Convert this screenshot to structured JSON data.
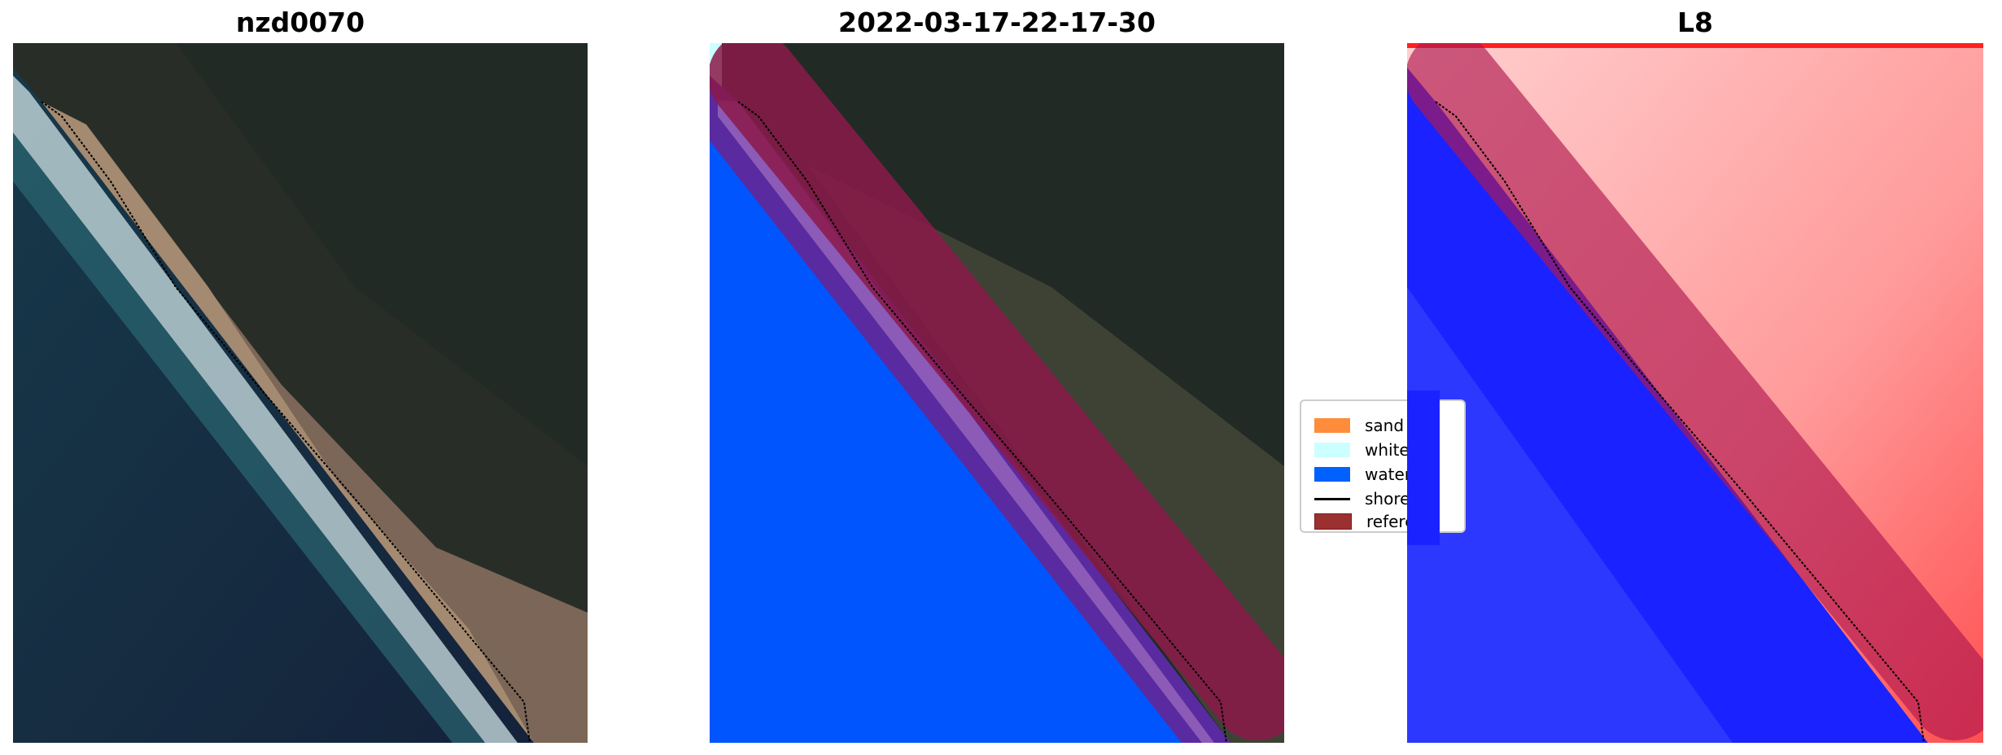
{
  "panels": [
    {
      "title": "nzd0070",
      "kind": "rgb-image"
    },
    {
      "title": "2022-03-17-22-17-30",
      "kind": "classified-image"
    },
    {
      "title": "L8",
      "kind": "index-image"
    }
  ],
  "legend": {
    "items": [
      {
        "label": "sand",
        "color": "#ff8c3a",
        "type": "patch"
      },
      {
        "label": "whitew",
        "color": "#ccffff",
        "type": "patch"
      },
      {
        "label": "water",
        "color": "#0061ff",
        "type": "patch"
      },
      {
        "label": "shorel",
        "color": "#000000",
        "type": "line"
      },
      {
        "label": "referer",
        "color": "#9b3030",
        "type": "patch"
      }
    ]
  },
  "colors": {
    "reference_band": "#8b1a4a",
    "water": "#0055ff",
    "land": "#1f2a24"
  }
}
